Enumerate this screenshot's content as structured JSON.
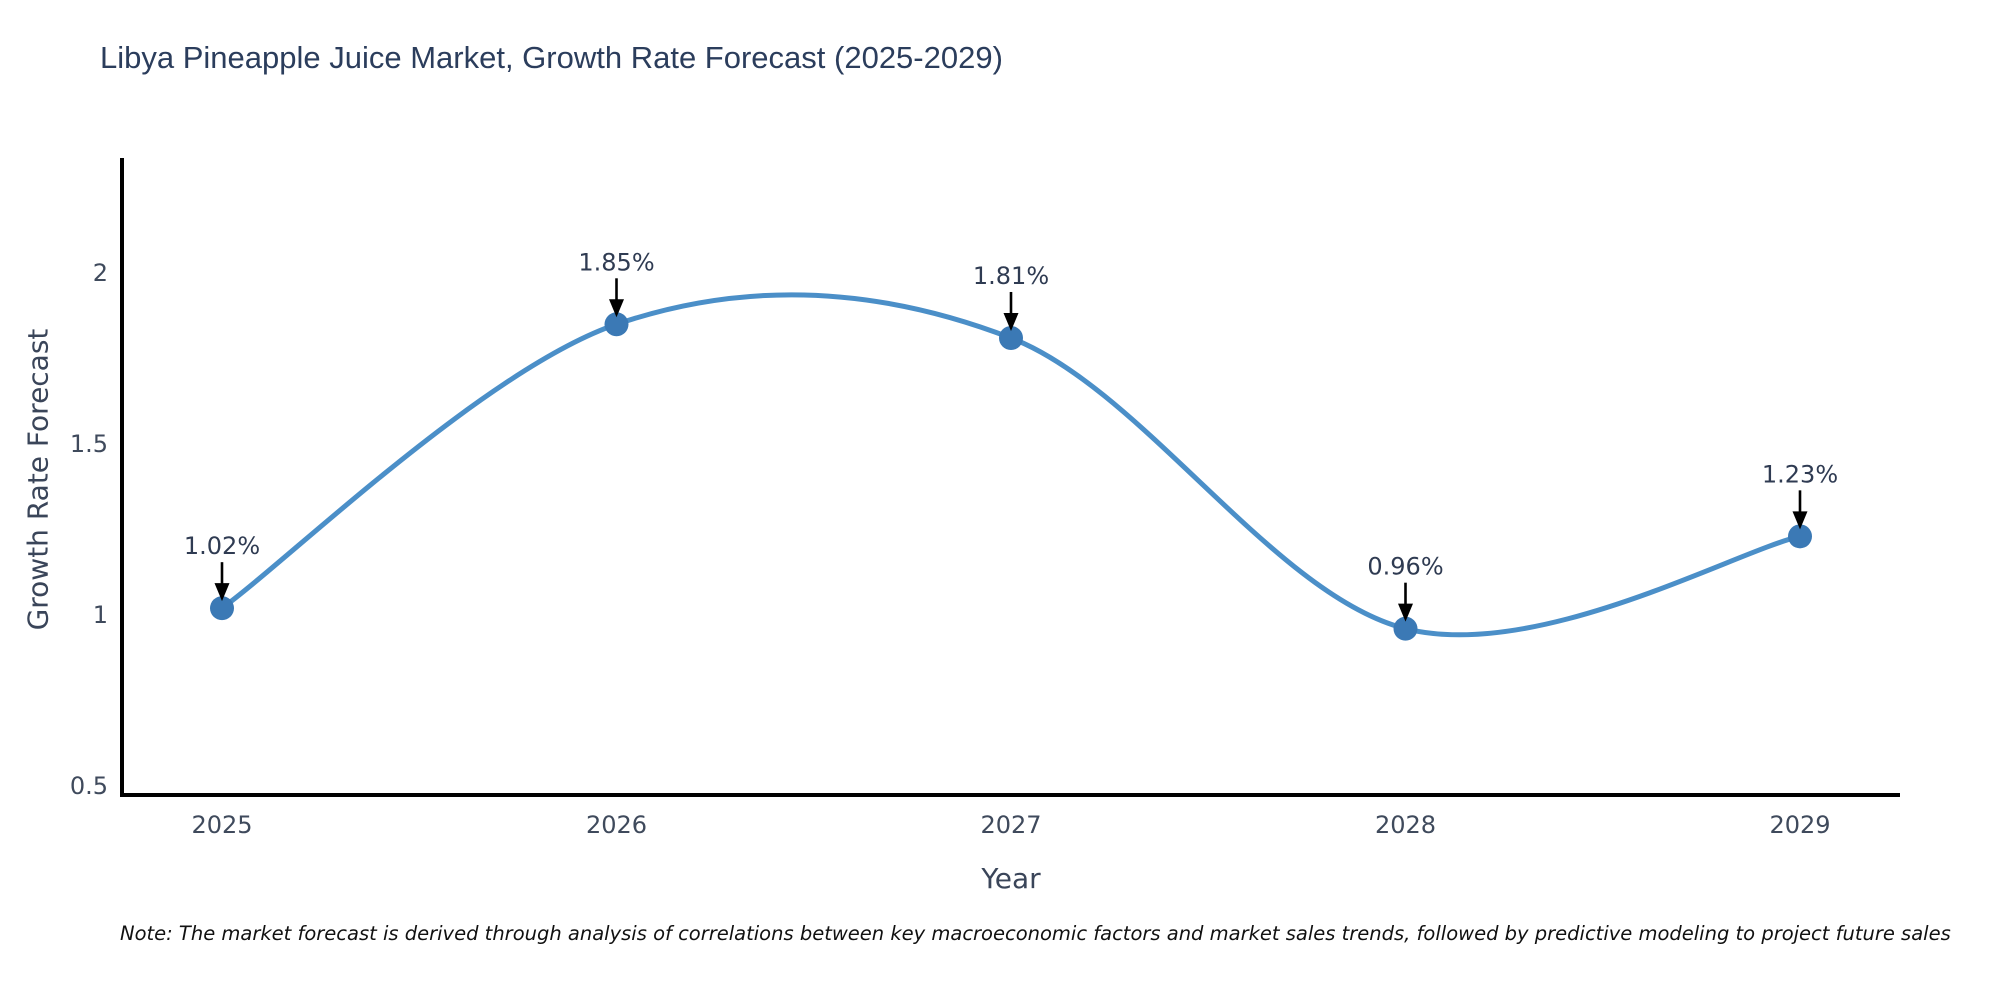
{
  "page": {
    "background": "#ffffff"
  },
  "chart_data": {
    "type": "line",
    "title": "Libya Pineapple Juice Market, Growth Rate Forecast (2025-2029)",
    "xlabel": "Year",
    "ylabel": "Growth Rate Forecast",
    "categories": [
      "2025",
      "2026",
      "2027",
      "2028",
      "2029"
    ],
    "series": [
      {
        "name": "Growth Rate Forecast",
        "values": [
          1.02,
          1.85,
          1.81,
          0.96,
          1.23
        ],
        "point_labels": [
          "1.02%",
          "1.85%",
          "1.81%",
          "0.96%",
          "1.23%"
        ]
      }
    ],
    "line_shape": "spline",
    "markers": true,
    "grid": false,
    "legend_position": "none",
    "ytick_labels": [
      "0.5",
      "1",
      "1.5",
      "2"
    ],
    "ytick_values": [
      0.5,
      1,
      1.5,
      2
    ],
    "ylim": [
      0.47,
      2.34
    ],
    "colors": {
      "line": "#4b8fc8",
      "marker": "#3b79b5",
      "axis_line": "#000000",
      "tick_label": "#3f4a5c",
      "title": "#2b3d5c",
      "annotation_text": "#2f3b52",
      "arrow": "#000000"
    }
  },
  "note": "Note: The market forecast is derived through analysis of correlations between key macroeconomic factors and market sales trends, followed by predictive modeling to project future sales"
}
